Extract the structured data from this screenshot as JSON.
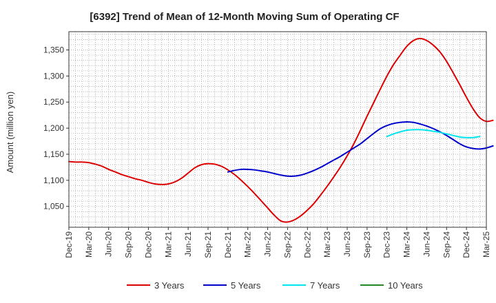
{
  "chart_data": {
    "type": "line",
    "title": "[6392]  Trend of Mean of 12-Month Moving Sum of Operating CF",
    "xlabel": "",
    "ylabel": "Amount (million yen)",
    "ylim": [
      1010,
      1385
    ],
    "yticks": [
      1050,
      1100,
      1150,
      1200,
      1250,
      1300,
      1350
    ],
    "ytick_labels": [
      "1,050",
      "1,100",
      "1,150",
      "1,200",
      "1,250",
      "1,300",
      "1,350"
    ],
    "xtick_labels": [
      "Dec-19",
      "Mar-20",
      "Jun-20",
      "Sep-20",
      "Dec-20",
      "Mar-21",
      "Jun-21",
      "Sep-21",
      "Dec-21",
      "Mar-22",
      "Jun-22",
      "Sep-22",
      "Dec-22",
      "Mar-23",
      "Jun-23",
      "Sep-23",
      "Dec-23",
      "Mar-24",
      "Jun-24",
      "Sep-24",
      "Dec-24",
      "Mar-25"
    ],
    "grid": true,
    "legend_position": "bottom",
    "series": [
      {
        "name": "3 Years",
        "color": "#dd0000",
        "start_month_index": 0,
        "values": [
          1136,
          1135,
          1135,
          1134,
          1131,
          1127,
          1121,
          1116,
          1111,
          1107,
          1103,
          1100,
          1096,
          1093,
          1092,
          1093,
          1097,
          1104,
          1114,
          1124,
          1130,
          1132,
          1131,
          1127,
          1120,
          1111,
          1100,
          1088,
          1075,
          1061,
          1047,
          1033,
          1022,
          1020,
          1024,
          1032,
          1043,
          1056,
          1072,
          1089,
          1107,
          1126,
          1147,
          1170,
          1196,
          1223,
          1249,
          1275,
          1300,
          1322,
          1340,
          1357,
          1368,
          1372,
          1368,
          1359,
          1346,
          1328,
          1306,
          1283,
          1259,
          1237,
          1220,
          1213,
          1215
        ]
      },
      {
        "name": "5 Years",
        "color": "#0000cc",
        "start_month_index": 24,
        "values": [
          1116,
          1119,
          1121,
          1121,
          1120,
          1118,
          1116,
          1113,
          1110,
          1108,
          1108,
          1110,
          1114,
          1119,
          1125,
          1132,
          1139,
          1146,
          1154,
          1162,
          1170,
          1180,
          1190,
          1199,
          1205,
          1209,
          1211,
          1212,
          1211,
          1208,
          1204,
          1199,
          1193,
          1186,
          1178,
          1170,
          1164,
          1161,
          1160,
          1162,
          1166
        ]
      },
      {
        "name": "7 Years",
        "color": "#00e5ee",
        "start_month_index": 48,
        "values": [
          1184,
          1189,
          1193,
          1196,
          1197,
          1197,
          1196,
          1194,
          1192,
          1189,
          1186,
          1183,
          1182,
          1182,
          1184
        ]
      },
      {
        "name": "10 Years",
        "color": "#228822",
        "start_month_index": null,
        "values": []
      }
    ]
  }
}
